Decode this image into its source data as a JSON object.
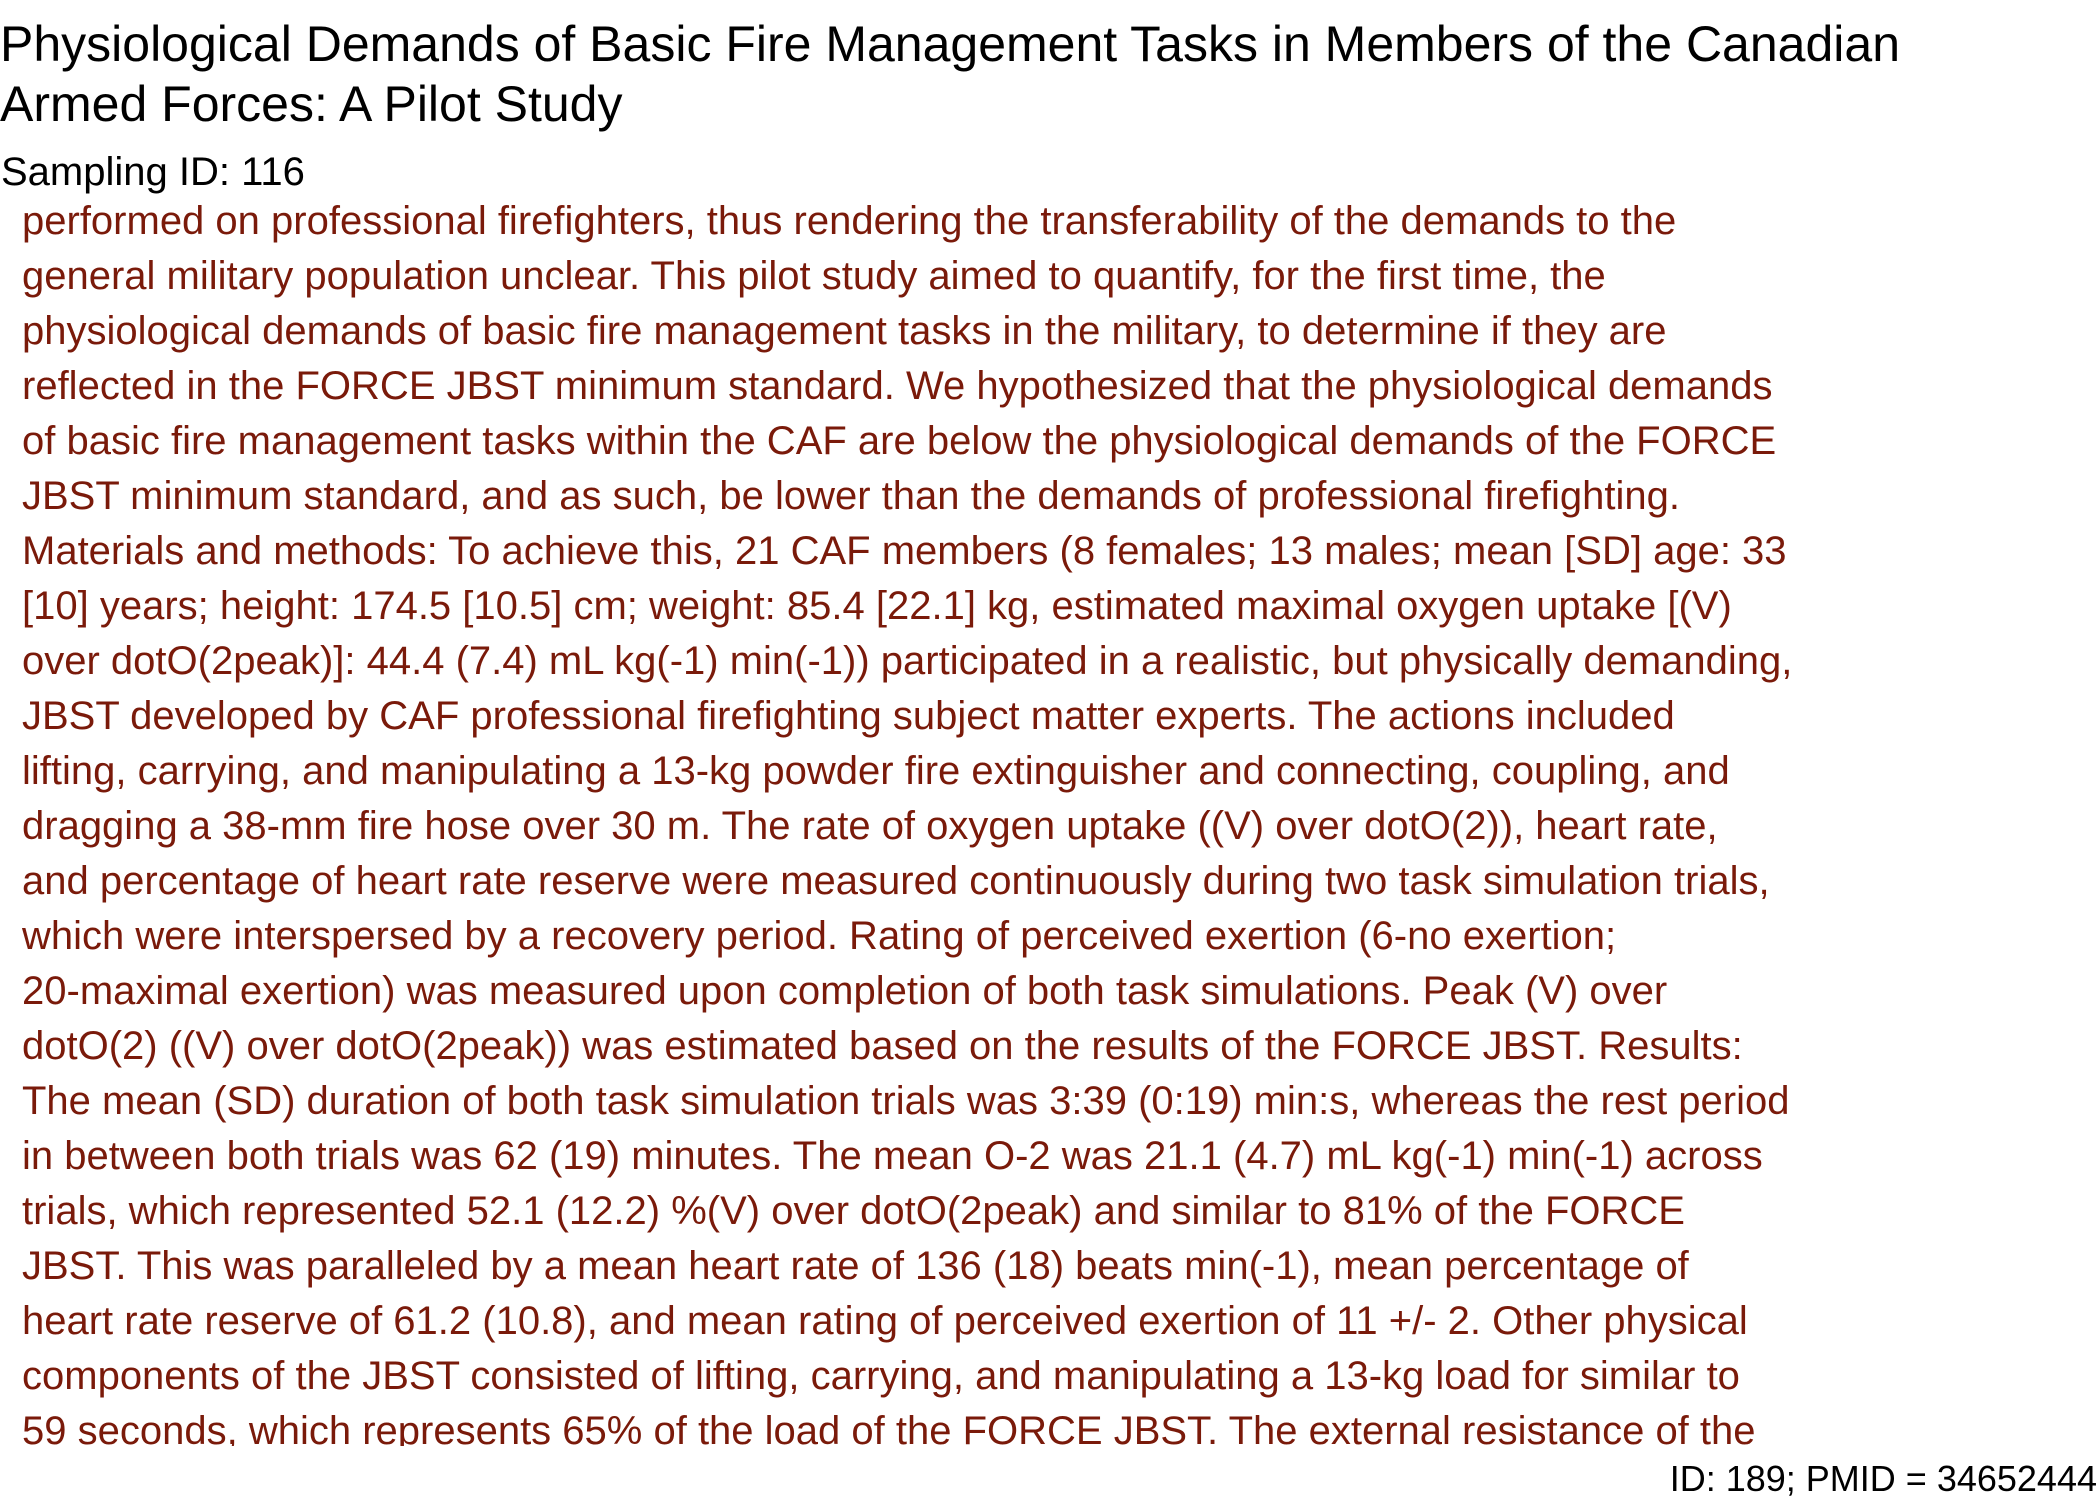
{
  "document": {
    "title_lines": [
      "Physiological Demands of Basic Fire Management Tasks in Members of the Canadian",
      "Armed Forces: A Pilot Study"
    ],
    "sampling_id": "Sampling ID: 116",
    "abstract_lines": [
      "performed on professional firefighters, thus rendering the transferability of the demands to the",
      "general military population unclear. This pilot study aimed to quantify, for the first time, the",
      "physiological demands of basic fire management tasks in the military, to determine if they are",
      "reflected in the FORCE JBST minimum standard. We hypothesized that the physiological demands",
      "of basic fire management tasks within the CAF are below the physiological demands of the FORCE",
      "JBST minimum standard, and as such, be lower than the demands of professional firefighting.",
      "Materials and methods: To achieve this, 21 CAF members (8 females; 13 males; mean [SD] age: 33",
      "[10] years; height: 174.5 [10.5] cm; weight: 85.4 [22.1] kg, estimated maximal oxygen uptake [(V)",
      "over dotO(2peak)]: 44.4 (7.4) mL kg(-1) min(-1)) participated in a realistic, but physically demanding,",
      "JBST developed by CAF professional firefighting subject matter experts. The actions included",
      "lifting, carrying, and manipulating a 13-kg powder fire extinguisher and connecting, coupling, and",
      "dragging a 38-mm fire hose over 30 m. The rate of oxygen uptake ((V) over dotO(2)), heart rate,",
      "and percentage of heart rate reserve were measured continuously during two task simulation trials,",
      "which were interspersed by a recovery period. Rating of perceived exertion (6-no exertion;",
      "20-maximal exertion) was measured upon completion of both task simulations. Peak (V) over",
      "dotO(2) ((V) over dotO(2peak)) was estimated based on the results of the FORCE JBST. Results:",
      "The mean (SD) duration of both task simulation trials was 3:39 (0:19) min:s, whereas the rest period",
      "in between both trials was 62 (19) minutes. The mean O-2 was 21.1 (4.7) mL kg(-1) min(-1) across",
      "trials, which represented 52.1 (12.2) %(V) over dotO(2peak) and similar to 81% of the FORCE",
      "JBST. This was paralleled by a mean heart rate of 136 (18) beats min(-1), mean percentage of",
      "heart rate reserve of 61.2 (10.8), and mean rating of perceived exertion of 11 +/- 2. Other physical",
      "components of the JBST consisted of lifting, carrying, and manipulating a 13-kg load for similar to",
      "59 seconds, which represents 65% of the load of the FORCE JBST. The external resistance of the"
    ],
    "footer_id": "ID: 189; PMID = 34652444"
  },
  "colors": {
    "title_text": "#000000",
    "abstract_text": "#7a1a0a",
    "background": "#ffffff"
  }
}
